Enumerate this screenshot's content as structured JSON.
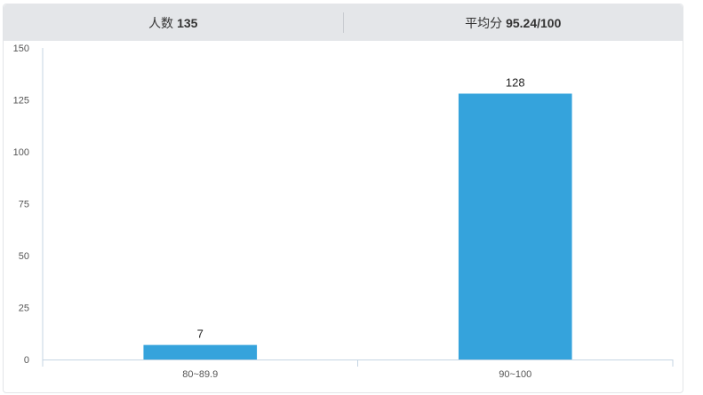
{
  "stats": {
    "count_label": "人数",
    "count_value": "135",
    "avg_label": "平均分",
    "avg_value": "95.24/100"
  },
  "chart_data": {
    "type": "bar",
    "categories": [
      "80~89.9",
      "90~100"
    ],
    "values": [
      7,
      128
    ],
    "ylim": [
      0,
      150
    ],
    "yticks": [
      0,
      25,
      50,
      75,
      100,
      125,
      150
    ],
    "bar_color": "#35a3dc",
    "axis_color": "#c5d5e3",
    "grid": false
  }
}
